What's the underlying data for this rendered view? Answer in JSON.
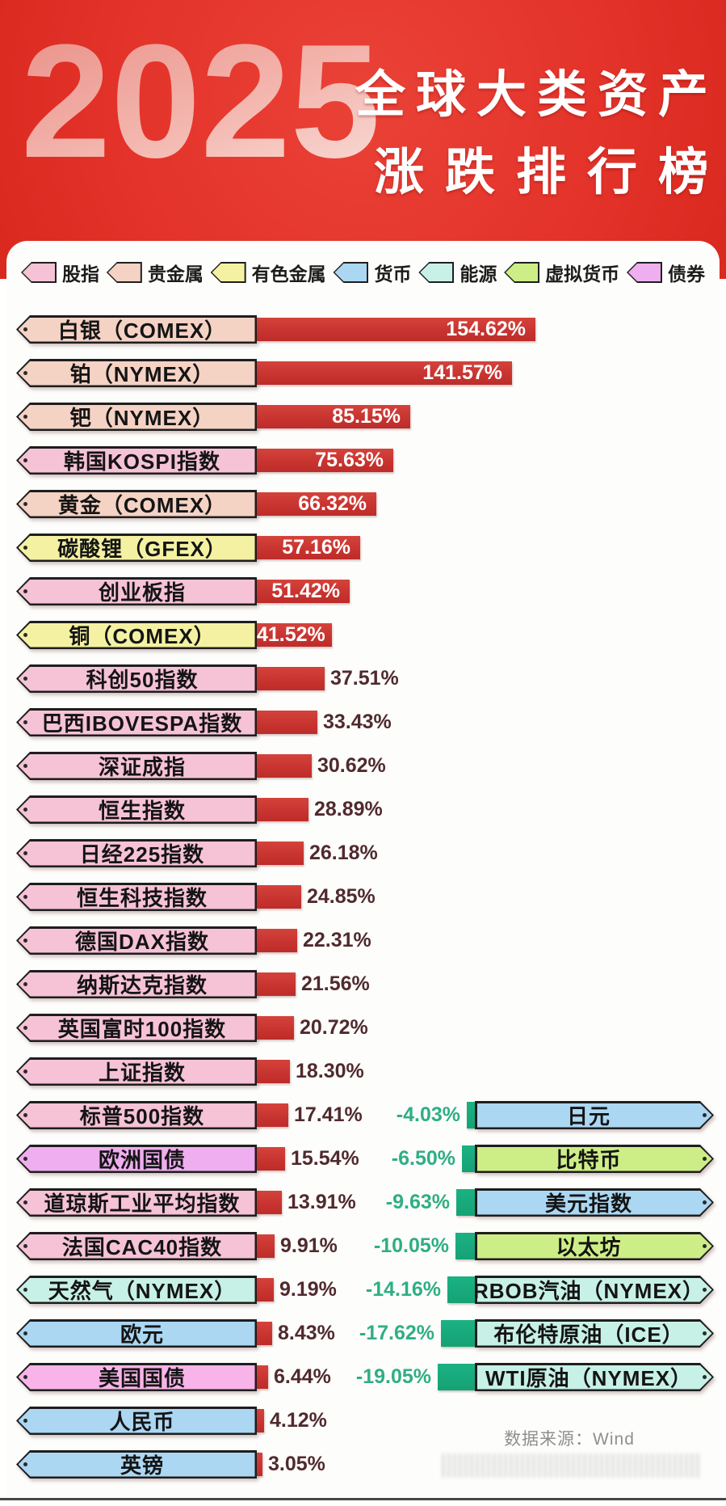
{
  "header": {
    "year": "2025",
    "title_line1": "全球大类资产",
    "title_line2": "涨跌排行榜"
  },
  "legend": [
    {
      "label": "股指",
      "color": "#f6c2d6"
    },
    {
      "label": "贵金属",
      "color": "#f4d2c4"
    },
    {
      "label": "有色金属",
      "color": "#f4f2a2"
    },
    {
      "label": "货币",
      "color": "#abd7f3"
    },
    {
      "label": "能源",
      "color": "#c7f1e6"
    },
    {
      "label": "虚拟货币",
      "color": "#cdee86"
    },
    {
      "label": "债券",
      "color": "#efaeef"
    }
  ],
  "chart_data": {
    "type": "bar",
    "orientation": "horizontal",
    "title": "2025 全球大类资产涨跌排行榜",
    "unit": "%",
    "positive_bar_color": "#c7332f",
    "negative_bar_color": "#16a677",
    "gainers": [
      {
        "label": "白银（COMEX）",
        "value": 154.62,
        "display": "154.62%",
        "category": "贵金属"
      },
      {
        "label": "铂（NYMEX）",
        "value": 141.57,
        "display": "141.57%",
        "category": "贵金属"
      },
      {
        "label": "钯（NYMEX）",
        "value": 85.15,
        "display": "85.15%",
        "category": "贵金属"
      },
      {
        "label": "韩国KOSPI指数",
        "value": 75.63,
        "display": "75.63%",
        "category": "股指"
      },
      {
        "label": "黄金（COMEX）",
        "value": 66.32,
        "display": "66.32%",
        "category": "贵金属"
      },
      {
        "label": "碳酸锂（GFEX）",
        "value": 57.16,
        "display": "57.16%",
        "category": "有色金属"
      },
      {
        "label": "创业板指",
        "value": 51.42,
        "display": "51.42%",
        "category": "股指"
      },
      {
        "label": "铜（COMEX）",
        "value": 41.52,
        "display": "41.52%",
        "category": "有色金属"
      },
      {
        "label": "科创50指数",
        "value": 37.51,
        "display": "37.51%",
        "category": "股指"
      },
      {
        "label": "巴西IBOVESPA指数",
        "value": 33.43,
        "display": "33.43%",
        "category": "股指"
      },
      {
        "label": "深证成指",
        "value": 30.62,
        "display": "30.62%",
        "category": "股指"
      },
      {
        "label": "恒生指数",
        "value": 28.89,
        "display": "28.89%",
        "category": "股指"
      },
      {
        "label": "日经225指数",
        "value": 26.18,
        "display": "26.18%",
        "category": "股指"
      },
      {
        "label": "恒生科技指数",
        "value": 24.85,
        "display": "24.85%",
        "category": "股指"
      },
      {
        "label": "德国DAX指数",
        "value": 22.31,
        "display": "22.31%",
        "category": "股指"
      },
      {
        "label": "纳斯达克指数",
        "value": 21.56,
        "display": "21.56%",
        "category": "股指"
      },
      {
        "label": "英国富时100指数",
        "value": 20.72,
        "display": "20.72%",
        "category": "股指"
      },
      {
        "label": "上证指数",
        "value": 18.3,
        "display": "18.30%",
        "category": "股指"
      },
      {
        "label": "标普500指数",
        "value": 17.41,
        "display": "17.41%",
        "category": "股指"
      },
      {
        "label": "欧洲国债",
        "value": 15.54,
        "display": "15.54%",
        "category": "债券"
      },
      {
        "label": "道琼斯工业平均指数",
        "value": 13.91,
        "display": "13.91%",
        "category": "股指"
      },
      {
        "label": "法国CAC40指数",
        "value": 9.91,
        "display": "9.91%",
        "category": "股指"
      },
      {
        "label": "天然气（NYMEX）",
        "value": 9.19,
        "display": "9.19%",
        "category": "能源"
      },
      {
        "label": "欧元",
        "value": 8.43,
        "display": "8.43%",
        "category": "货币"
      },
      {
        "label": "美国国债",
        "value": 6.44,
        "display": "6.44%",
        "category": "债券",
        "color": "#f8b4e8"
      },
      {
        "label": "人民币",
        "value": 4.12,
        "display": "4.12%",
        "category": "货币"
      },
      {
        "label": "英镑",
        "value": 3.05,
        "display": "3.05%",
        "category": "货币"
      }
    ],
    "losers": [
      {
        "label": "日元",
        "value": -4.03,
        "display": "-4.03%",
        "category": "货币"
      },
      {
        "label": "比特币",
        "value": -6.5,
        "display": "-6.50%",
        "category": "虚拟货币"
      },
      {
        "label": "美元指数",
        "value": -9.63,
        "display": "-9.63%",
        "category": "货币"
      },
      {
        "label": "以太坊",
        "value": -10.05,
        "display": "-10.05%",
        "category": "虚拟货币"
      },
      {
        "label": "RBOB汽油（NYMEX）",
        "value": -14.16,
        "display": "-14.16%",
        "category": "能源"
      },
      {
        "label": "布伦特原油（ICE）",
        "value": -17.62,
        "display": "-17.62%",
        "category": "能源"
      },
      {
        "label": "WTI原油（NYMEX）",
        "value": -19.05,
        "display": "-19.05%",
        "category": "能源"
      }
    ]
  },
  "footer": {
    "source": "数据来源：Wind"
  }
}
